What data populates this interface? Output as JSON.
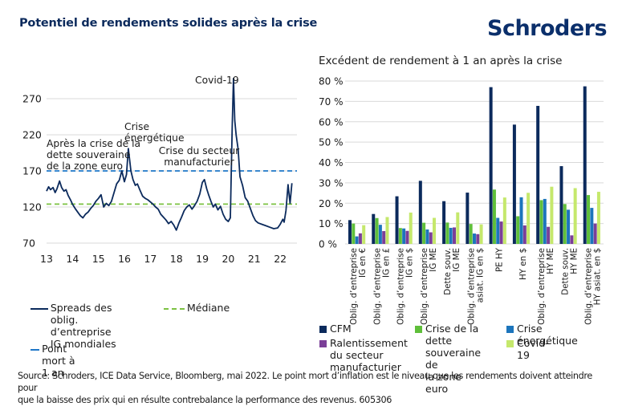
{
  "header": {
    "title": "Potentiel de rendements solides après la crise",
    "logo": "Schroders"
  },
  "colors": {
    "navy": "#0b2a5c",
    "breakeven_blue": "#1f77c8",
    "median_green": "#7cc242",
    "gridline": "#d9d9d9"
  },
  "chart_data": [
    {
      "type": "line",
      "title": "",
      "xlabel": "",
      "ylabel": "",
      "x_ticks": [
        "13",
        "14",
        "15",
        "16",
        "17",
        "18",
        "19",
        "20",
        "21",
        "22"
      ],
      "y_ticks": [
        70,
        120,
        170,
        220,
        270
      ],
      "ylim": [
        70,
        300
      ],
      "xlim": [
        2013,
        2022.5
      ],
      "grid": true,
      "series": [
        {
          "name": "Spreads des oblig. d’entreprise IG mondiales",
          "color": "#0b2a5c",
          "x": [
            2013.0,
            2013.08,
            2013.15,
            2013.25,
            2013.33,
            2013.4,
            2013.5,
            2013.58,
            2013.67,
            2013.75,
            2013.83,
            2013.92,
            2014.0,
            2014.1,
            2014.2,
            2014.3,
            2014.4,
            2014.5,
            2014.6,
            2014.7,
            2014.8,
            2014.9,
            2015.0,
            2015.1,
            2015.2,
            2015.3,
            2015.4,
            2015.5,
            2015.6,
            2015.7,
            2015.8,
            2015.9,
            2016.0,
            2016.08,
            2016.15,
            2016.25,
            2016.33,
            2016.42,
            2016.5,
            2016.6,
            2016.7,
            2016.8,
            2016.9,
            2017.0,
            2017.1,
            2017.2,
            2017.3,
            2017.4,
            2017.5,
            2017.6,
            2017.7,
            2017.8,
            2017.9,
            2018.0,
            2018.1,
            2018.2,
            2018.3,
            2018.4,
            2018.5,
            2018.6,
            2018.7,
            2018.8,
            2018.9,
            2019.0,
            2019.08,
            2019.17,
            2019.25,
            2019.33,
            2019.42,
            2019.5,
            2019.6,
            2019.7,
            2019.8,
            2019.9,
            2020.0,
            2020.08,
            2020.15,
            2020.2,
            2020.25,
            2020.3,
            2020.38,
            2020.45,
            2020.55,
            2020.65,
            2020.75,
            2020.85,
            2020.95,
            2021.05,
            2021.15,
            2021.3,
            2021.45,
            2021.6,
            2021.75,
            2021.9,
            2022.0,
            2022.1,
            2022.15,
            2022.22,
            2022.3,
            2022.38,
            2022.45
          ],
          "y": [
            142,
            148,
            144,
            147,
            140,
            145,
            156,
            147,
            142,
            144,
            136,
            130,
            124,
            118,
            113,
            108,
            105,
            110,
            113,
            118,
            122,
            128,
            132,
            137,
            120,
            125,
            122,
            128,
            140,
            152,
            157,
            170,
            155,
            165,
            201,
            170,
            158,
            150,
            152,
            143,
            135,
            132,
            130,
            127,
            124,
            120,
            117,
            110,
            106,
            102,
            97,
            100,
            95,
            88,
            98,
            106,
            115,
            120,
            123,
            117,
            122,
            128,
            138,
            154,
            158,
            145,
            136,
            128,
            120,
            124,
            116,
            121,
            110,
            103,
            100,
            105,
            230,
            298,
            240,
            220,
            200,
            162,
            150,
            133,
            128,
            118,
            108,
            101,
            98,
            96,
            94,
            92,
            90,
            91,
            96,
            103,
            99,
            115,
            151,
            125,
            153
          ],
          "style": "solid"
        },
        {
          "name": "Point mort à 1 an",
          "color": "#1f77c8",
          "value": 170,
          "style": "dashed"
        },
        {
          "name": "Médiane",
          "color": "#7cc242",
          "value": 124,
          "style": "dashed"
        }
      ],
      "annotations": [
        {
          "text": "Après la crise de la dette souveraine de la zone euro",
          "x": 2013.0,
          "y": 190
        },
        {
          "text": "Crise énergétique",
          "x": 2016.0,
          "y": 222
        },
        {
          "text": "Crise du secteur manufacturier",
          "x": 2018.4,
          "y": 188
        },
        {
          "text": "Covid-19",
          "x": 2018.7,
          "y": 290
        }
      ],
      "legend": {
        "placement": "bottom",
        "items": [
          {
            "label": "Spreads des oblig. d’entreprise IG mondiales",
            "style": "solid",
            "color": "#0b2a5c"
          },
          {
            "label": "Médiane",
            "style": "dashed",
            "color": "#7cc242"
          },
          {
            "label": "Point mort à 1 an",
            "style": "dashed",
            "color": "#1f77c8"
          }
        ]
      }
    },
    {
      "type": "bar",
      "title": "Excédent de rendement à 1 an après la crise",
      "xlabel": "",
      "ylabel": "",
      "ylim": [
        0,
        80
      ],
      "y_ticks": [
        "0 %",
        "10 %",
        "20 %",
        "30 %",
        "40 %",
        "50 %",
        "60 %",
        "70 %",
        "80 %"
      ],
      "grid": true,
      "categories": [
        "Oblig. d’entreprise IG en €",
        "Oblig. d’entreprise IG en £",
        "Oblig. d’entreprise IG en $",
        "Oblig. d’entreprise IG ME",
        "Dette souv. IG ME",
        "Oblig. d’entreprise asiat. IG en $",
        "PE HY",
        "HY en $",
        "Oblig. d’entreprise HY ME",
        "Dette souv. HY ME",
        "Oblig. d’entreprise HY asiat. en $"
      ],
      "category_lines": [
        [
          "Oblig. d’entreprise",
          "IG en €"
        ],
        [
          "Oblig. d’entreprise",
          "IG en £"
        ],
        [
          "Oblig. d’entreprise",
          "IG en $"
        ],
        [
          "Oblig. d’entreprise",
          "IG ME"
        ],
        [
          "Dette souv.",
          "IG ME"
        ],
        [
          "Oblig. d’entreprise",
          "asiat. IG en $"
        ],
        [
          "PE HY"
        ],
        [
          "HY en $"
        ],
        [
          "Oblig. d’entreprise",
          "HY ME"
        ],
        [
          "Dette souv.",
          "HY ME"
        ],
        [
          "Oblig. d’entreprise",
          "HY asiat. en $"
        ]
      ],
      "series": [
        {
          "name": "CFM",
          "color": "#0b2a5c",
          "values": [
            11.7,
            14.7,
            23.4,
            31.0,
            21.0,
            25.2,
            77.0,
            58.6,
            67.8,
            38.2,
            77.4
          ]
        },
        {
          "name": "Crise de la dette souveraine de la zone euro",
          "color": "#5fbf3a",
          "values": [
            10.0,
            12.7,
            7.8,
            10.4,
            10.5,
            9.8,
            26.7,
            13.6,
            21.5,
            19.6,
            24.0
          ]
        },
        {
          "name": "Crise énergétique",
          "color": "#1c75bc",
          "values": [
            3.7,
            9.4,
            7.6,
            7.1,
            7.9,
            5.1,
            12.8,
            22.9,
            22.1,
            16.8,
            17.7
          ]
        },
        {
          "name": "Ralentissement du secteur manufacturier",
          "color": "#7b3f98",
          "values": [
            5.2,
            6.3,
            6.4,
            5.7,
            8.1,
            4.8,
            11.0,
            9.1,
            8.4,
            4.2,
            10.0
          ]
        },
        {
          "name": "Covid-19",
          "color": "#c5e86c",
          "values": [
            9.2,
            13.2,
            15.4,
            12.8,
            15.5,
            9.6,
            22.8,
            25.1,
            28.1,
            27.4,
            25.6
          ]
        }
      ],
      "legend": {
        "placement": "bottom",
        "items": [
          {
            "label": "CFM",
            "color": "#0b2a5c"
          },
          {
            "label": "Crise de la dette souveraine de la zone euro",
            "lines": [
              "Crise de la dette",
              "souveraine de",
              "la zone euro"
            ],
            "color": "#5fbf3a"
          },
          {
            "label": "Crise énergétique",
            "color": "#1c75bc"
          },
          {
            "label": "Ralentissement du secteur manufacturier",
            "lines": [
              "Ralentissement",
              "du secteur",
              "manufacturier"
            ],
            "color": "#7b3f98"
          },
          {
            "label": "Covid-19",
            "color": "#c5e86c"
          }
        ]
      }
    }
  ],
  "legend_left": {
    "spreads_lines": [
      "Spreads des oblig.",
      "d’entreprise",
      "IG mondiales"
    ],
    "median": "Médiane",
    "breakeven": "Point mort à 1 an"
  },
  "footer": {
    "source_line1": "Source: Schroders, ICE Data Service, Bloomberg, mai 2022. Le point mort d’inflation est le niveau que les rendements doivent atteindre pour",
    "source_line2": "que la baisse des prix qui en résulte contrebalance la performance des revenus. 605306"
  }
}
